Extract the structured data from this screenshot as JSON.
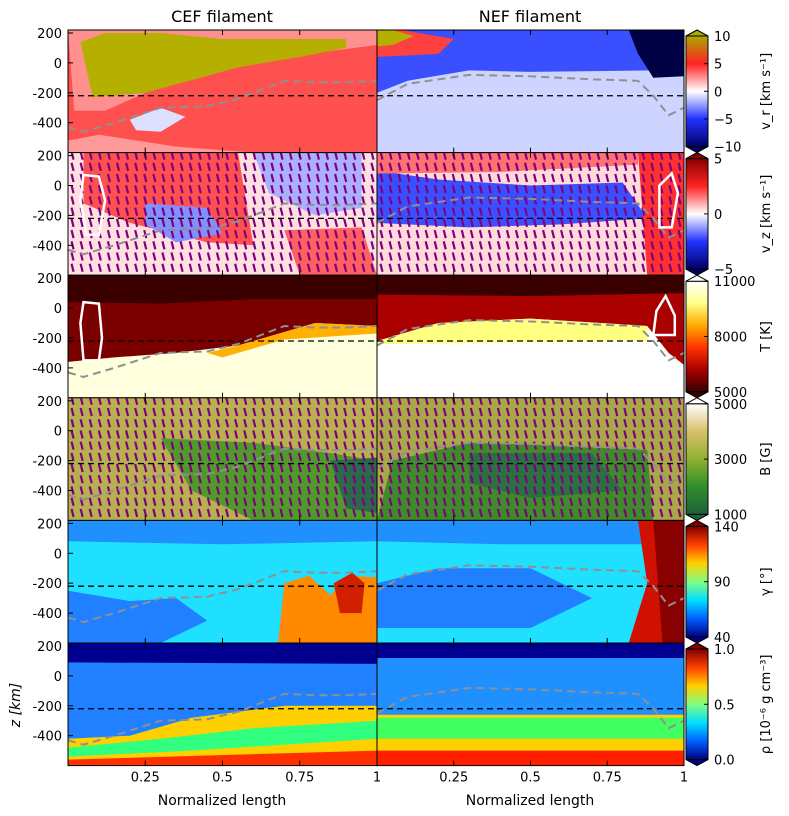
{
  "figure": {
    "column_titles": [
      "CEF filament",
      "NEF filament"
    ],
    "xlabel": "Normalized length",
    "ylabel": "z [km]",
    "x_ticks": [
      "0.25",
      "0.5",
      "0.75",
      "1"
    ],
    "y_ticks": [
      "200",
      "0",
      "-200",
      "-400"
    ]
  },
  "chart_data": [
    {
      "type": "heatmap",
      "quantity": "v_r",
      "cbar_label": "v_r [km s⁻¹]",
      "cbar_ticks": [
        "10",
        "5",
        "0",
        "−5",
        "−10"
      ],
      "vlim": [
        -10,
        10
      ],
      "colormap": "seismic-like, extend both",
      "colors": [
        "#000066",
        "#2233ff",
        "#ffffff",
        "#ff2222",
        "#aaaa00"
      ]
    },
    {
      "type": "heatmap",
      "quantity": "v_z",
      "cbar_label": "v_z [km s⁻¹]",
      "cbar_ticks": [
        "5",
        "0",
        "−5"
      ],
      "vlim": [
        -5,
        5
      ],
      "overlay": "vector arrows (purple) and white contour",
      "colors": [
        "#000066",
        "#2233ff",
        "#ffffff",
        "#ff2222",
        "#880000"
      ]
    },
    {
      "type": "heatmap",
      "quantity": "T",
      "cbar_label": "T [K]",
      "cbar_ticks": [
        "11000",
        "8000",
        "5000"
      ],
      "vlim": [
        3500,
        12000
      ],
      "overlay": "white contour",
      "colors": [
        "#3a0000",
        "#aa0000",
        "#ff3300",
        "#ffaa00",
        "#ffff88",
        "#ffffff"
      ]
    },
    {
      "type": "heatmap",
      "quantity": "B",
      "cbar_label": "B [G]",
      "cbar_ticks": [
        "5000",
        "3000",
        "1000"
      ],
      "vlim": [
        0,
        5000
      ],
      "overlay": "vector arrows (purple)",
      "colors": [
        "#1f5f3a",
        "#2f8f2a",
        "#8fb030",
        "#d8c06a",
        "#ffffff"
      ]
    },
    {
      "type": "heatmap",
      "quantity": "gamma",
      "cbar_label": "γ [°]",
      "cbar_ticks": [
        "140",
        "90",
        "40"
      ],
      "vlim": [
        40,
        140
      ],
      "colormap": "jet",
      "colors": [
        "#000080",
        "#0060ff",
        "#00e0ff",
        "#80ff80",
        "#ffd000",
        "#ff4000",
        "#800000"
      ]
    },
    {
      "type": "heatmap",
      "quantity": "rho",
      "cbar_label": "ρ [10⁻⁶ g cm⁻³]",
      "cbar_ticks": [
        "1.0",
        "0.5",
        "0.0"
      ],
      "vlim": [
        0,
        1.0
      ],
      "colormap": "jet",
      "colors": [
        "#000080",
        "#0060ff",
        "#00e0ff",
        "#80ff80",
        "#ffd000",
        "#ff4000",
        "#800000"
      ]
    }
  ],
  "axes": {
    "x_range": [
      0,
      1
    ],
    "z_range": [
      -600,
      220
    ],
    "reference_line_z": -220
  }
}
